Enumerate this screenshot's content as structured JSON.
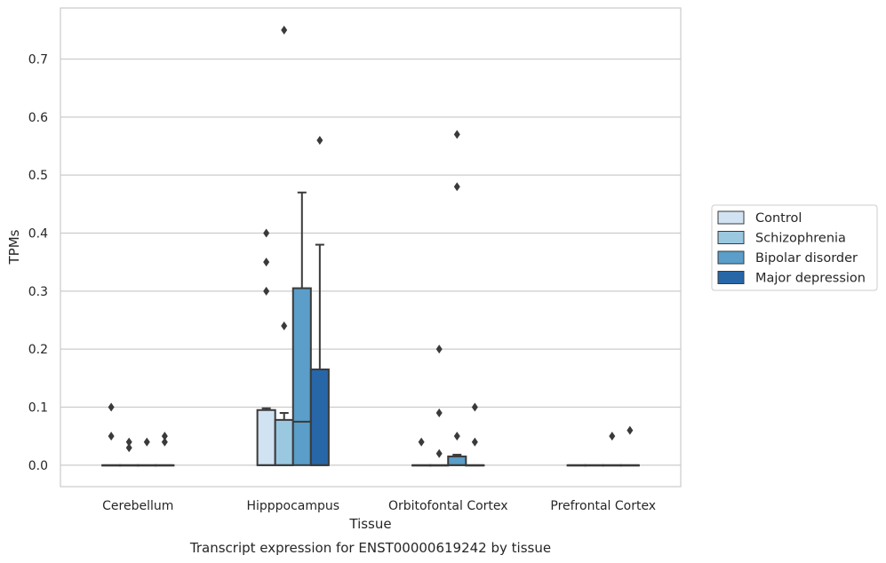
{
  "chart_data": {
    "type": "box",
    "title": "Transcript expression for ENST00000619242 by tissue",
    "xlabel": "Tissue",
    "ylabel": "TPMs",
    "categories": [
      "Cerebellum",
      "Hipppocampus",
      "Orbitofontal Cortex",
      "Prefrontal Cortex"
    ],
    "ylim": [
      -0.037,
      0.788
    ],
    "yticks": [
      "0.0",
      "0.1",
      "0.2",
      "0.3",
      "0.4",
      "0.5",
      "0.6",
      "0.7"
    ],
    "grid": "horizontal",
    "legend_position": "right",
    "colors": [
      "#d1e2f2",
      "#9ac8e0",
      "#5a9ec9",
      "#2767a8"
    ],
    "series": [
      {
        "name": "Control",
        "boxes": [
          {
            "q1": 0,
            "median": 0,
            "q3": 0,
            "whisker_low": 0,
            "whisker_high": 0,
            "outliers": [
              0.1,
              0.05
            ]
          },
          {
            "q1": 0,
            "median": 0,
            "q3": 0.095,
            "whisker_low": 0,
            "whisker_high": 0.098,
            "outliers": [
              0.4,
              0.35,
              0.3
            ]
          },
          {
            "q1": 0,
            "median": 0,
            "q3": 0,
            "whisker_low": 0,
            "whisker_high": 0,
            "outliers": [
              0.04
            ]
          },
          {
            "q1": 0,
            "median": 0,
            "q3": 0,
            "whisker_low": 0,
            "whisker_high": 0,
            "outliers": []
          }
        ]
      },
      {
        "name": "Schizophrenia",
        "boxes": [
          {
            "q1": 0,
            "median": 0,
            "q3": 0,
            "whisker_low": 0,
            "whisker_high": 0,
            "outliers": [
              0.04,
              0.03
            ]
          },
          {
            "q1": 0,
            "median": 0,
            "q3": 0.078,
            "whisker_low": 0,
            "whisker_high": 0.09,
            "outliers": [
              0.75,
              0.24
            ]
          },
          {
            "q1": 0,
            "median": 0,
            "q3": 0,
            "whisker_low": 0,
            "whisker_high": 0,
            "outliers": [
              0.2,
              0.09,
              0.02
            ]
          },
          {
            "q1": 0,
            "median": 0,
            "q3": 0,
            "whisker_low": 0,
            "whisker_high": 0,
            "outliers": []
          }
        ]
      },
      {
        "name": "Bipolar disorder",
        "boxes": [
          {
            "q1": 0,
            "median": 0,
            "q3": 0,
            "whisker_low": 0,
            "whisker_high": 0,
            "outliers": [
              0.04
            ]
          },
          {
            "q1": 0,
            "median": 0.075,
            "q3": 0.305,
            "whisker_low": 0,
            "whisker_high": 0.47,
            "outliers": []
          },
          {
            "q1": 0,
            "median": 0,
            "q3": 0.015,
            "whisker_low": 0,
            "whisker_high": 0.018,
            "outliers": [
              0.57,
              0.48,
              0.05
            ]
          },
          {
            "q1": 0,
            "median": 0,
            "q3": 0,
            "whisker_low": 0,
            "whisker_high": 0,
            "outliers": [
              0.05
            ]
          }
        ]
      },
      {
        "name": "Major depression",
        "boxes": [
          {
            "q1": 0,
            "median": 0,
            "q3": 0,
            "whisker_low": 0,
            "whisker_high": 0,
            "outliers": [
              0.05,
              0.04
            ]
          },
          {
            "q1": 0,
            "median": 0,
            "q3": 0.165,
            "whisker_low": 0,
            "whisker_high": 0.38,
            "outliers": [
              0.56
            ]
          },
          {
            "q1": 0,
            "median": 0,
            "q3": 0,
            "whisker_low": 0,
            "whisker_high": 0,
            "outliers": [
              0.1,
              0.04
            ]
          },
          {
            "q1": 0,
            "median": 0,
            "q3": 0,
            "whisker_low": 0,
            "whisker_high": 0,
            "outliers": [
              0.06
            ]
          }
        ]
      }
    ]
  }
}
